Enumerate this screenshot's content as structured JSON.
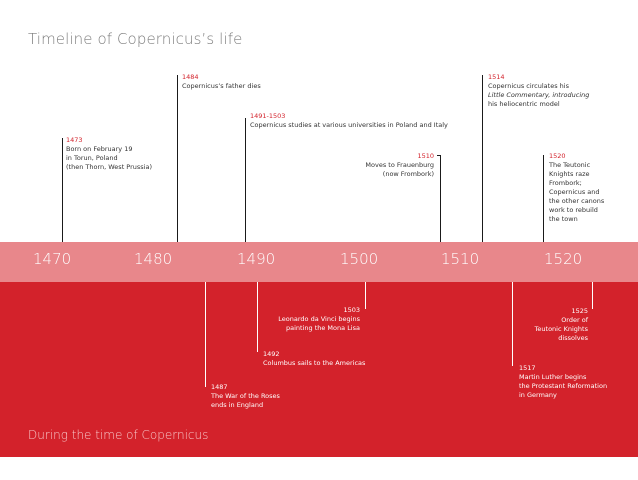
{
  "title": "Timeline of Copernicus’s life",
  "lower_title": "During the time of Copernicus",
  "years": [
    "1470",
    "1480",
    "1490",
    "1500",
    "1510",
    "1520"
  ],
  "upper_events": [
    {
      "year": "1473",
      "lines": [
        "Born on February 19",
        "in Torun, Poland",
        "(then Thorn, West Prussia)"
      ]
    },
    {
      "year": "1484",
      "lines": [
        "Copernicus’s father dies"
      ]
    },
    {
      "year": "1491-1503",
      "lines": [
        "Copernicus studies at various universities in Poland and Italy"
      ]
    },
    {
      "year": "1510",
      "lines": [
        "Moves to Frauenburg",
        "(now Frombork)"
      ]
    },
    {
      "year": "1514",
      "lines": [
        "Copernicus circulates his",
        "Little Commentary, introducing",
        "his heliocentric model"
      ]
    },
    {
      "year": "1520",
      "lines": [
        "The Teutonic",
        "Knights raze",
        "Frombork;",
        "Copernicus and",
        "the other canons",
        "work to rebuild",
        "the town"
      ]
    }
  ],
  "lower_events": [
    {
      "year": "1487",
      "lines": [
        "The War of the Roses",
        "ends in England"
      ]
    },
    {
      "year": "1492",
      "lines": [
        "Columbus sails to the Americas"
      ]
    },
    {
      "year": "1503",
      "lines": [
        "Leonardo da Vinci begins",
        "painting the Mona Lisa"
      ]
    },
    {
      "year": "1517",
      "lines": [
        "Martin Luther begins",
        "the Protestant Reformation",
        "in Germany"
      ]
    },
    {
      "year": "1525",
      "lines": [
        "Order of",
        "Teutonic Knights",
        "dissolves"
      ]
    }
  ]
}
